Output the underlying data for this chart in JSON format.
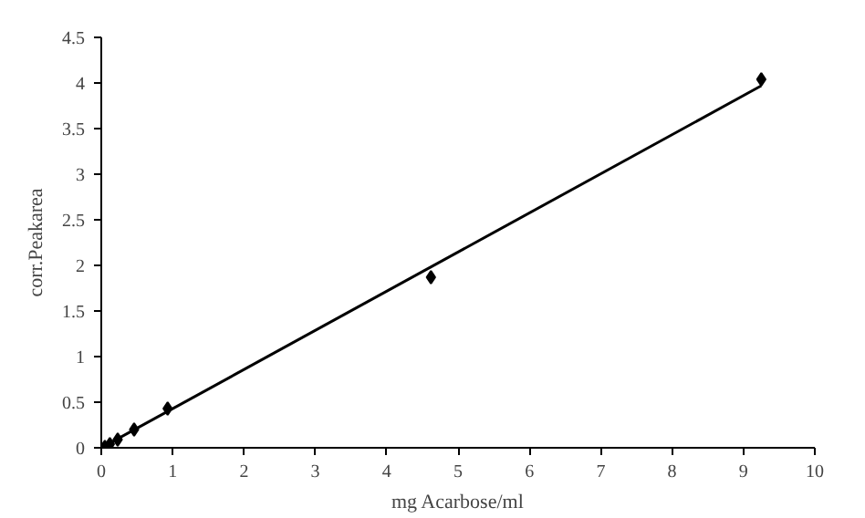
{
  "chart_data": {
    "type": "scatter",
    "xlabel": "mg Acarbose/ml",
    "ylabel": "corr.Peakarea",
    "xlim": [
      0,
      10
    ],
    "ylim": [
      0,
      4.5
    ],
    "xticks": [
      0,
      1,
      2,
      3,
      4,
      5,
      6,
      7,
      8,
      9,
      10
    ],
    "yticks": [
      0,
      0.5,
      1,
      1.5,
      2,
      2.5,
      3,
      3.5,
      4,
      4.5
    ],
    "grid": false,
    "series": [
      {
        "marker": "diamond",
        "color": "#000000",
        "x": [
          0.05,
          0.12,
          0.23,
          0.46,
          0.93,
          4.62,
          9.25
        ],
        "values": [
          0.01,
          0.04,
          0.09,
          0.2,
          0.43,
          1.87,
          4.04
        ]
      },
      {
        "type": "line",
        "color": "#000000",
        "x": [
          0,
          9.25
        ],
        "values": [
          0,
          3.97
        ]
      }
    ]
  }
}
